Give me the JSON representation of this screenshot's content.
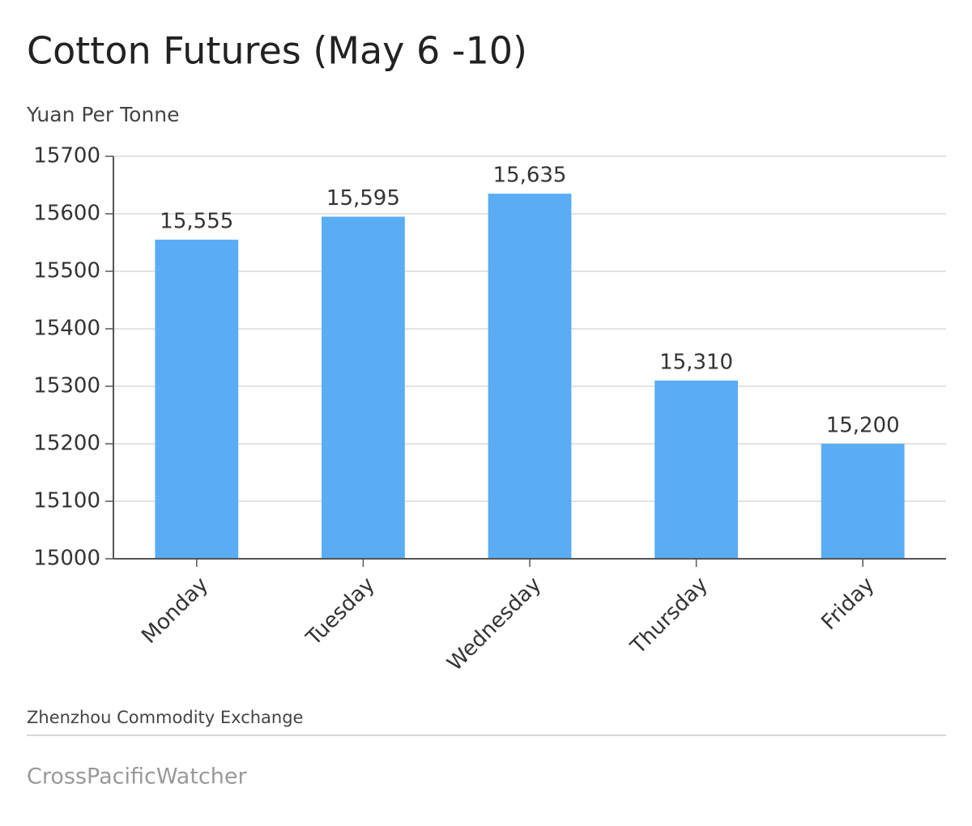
{
  "chart_data": {
    "type": "bar",
    "title": "Cotton Futures (May 6 -10)",
    "subtitle": "Yuan Per Tonne",
    "categories": [
      "Monday",
      "Tuesday",
      "Wednesday",
      "Thursday",
      "Friday"
    ],
    "values": [
      15555,
      15595,
      15635,
      15310,
      15200
    ],
    "value_labels": [
      "15,555",
      "15,595",
      "15,635",
      "15,310",
      "15,200"
    ],
    "color": "#5aadf5",
    "ylim": [
      15000,
      15700
    ],
    "yticks": [
      15000,
      15100,
      15200,
      15300,
      15400,
      15500,
      15600,
      15700
    ],
    "grid": true,
    "source": "Zhenzhou Commodity Exchange",
    "credit": "CrossPacificWatcher"
  }
}
